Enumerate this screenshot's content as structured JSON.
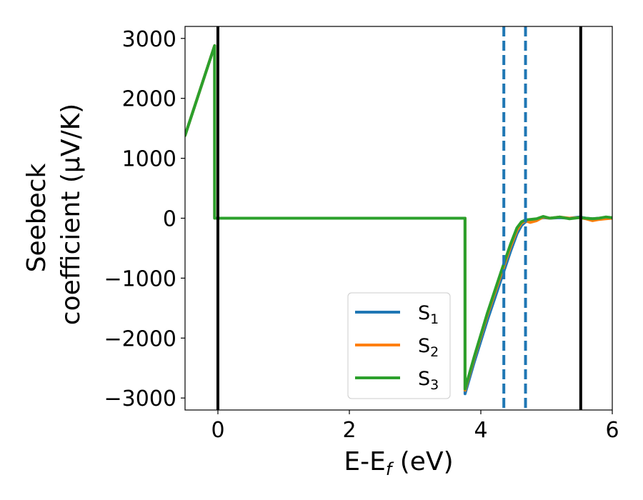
{
  "chart_data": {
    "type": "line",
    "xlabel": {
      "main": "E-E",
      "sub": "f",
      "tail": " (eV)"
    },
    "ylabel": {
      "line1": "Seebeck",
      "line2": "coefficient  (μV/K)"
    },
    "xlim": [
      -0.5,
      6.0
    ],
    "ylim": [
      -3200,
      3200
    ],
    "xticks": [
      0,
      2,
      4,
      6
    ],
    "yticks": [
      -3000,
      -2000,
      -1000,
      0,
      1000,
      2000,
      3000
    ],
    "ytick_labels": [
      "−3000",
      "−2000",
      "−1000",
      "0",
      "1000",
      "2000",
      "3000"
    ],
    "grid": false,
    "legend": {
      "placement": "lower-center-right"
    },
    "series": [
      {
        "name": "S",
        "sub": "1",
        "color": "#1f77b4",
        "x": [
          -0.5,
          -0.05,
          -0.05,
          3.76,
          3.76,
          3.9,
          4.1,
          4.3,
          4.45,
          4.55,
          4.62,
          4.68,
          4.75,
          4.85,
          4.95,
          5.05,
          5.2,
          5.35,
          5.5,
          5.6,
          5.7,
          5.8,
          5.9,
          6.0
        ],
        "y": [
          1380,
          2880,
          0,
          0,
          -2930,
          -2400,
          -1700,
          -1050,
          -560,
          -260,
          -120,
          -60,
          -40,
          -20,
          10,
          0,
          10,
          0,
          20,
          0,
          -10,
          0,
          10,
          0
        ]
      },
      {
        "name": "S",
        "sub": "2",
        "color": "#ff7f0e",
        "x": [
          -0.5,
          -0.05,
          -0.05,
          3.76,
          3.76,
          3.9,
          4.1,
          4.3,
          4.45,
          4.55,
          4.62,
          4.68,
          4.75,
          4.85,
          4.95,
          5.05,
          5.2,
          5.35,
          5.5,
          5.6,
          5.7,
          5.8,
          5.9,
          6.0
        ],
        "y": [
          1380,
          2880,
          0,
          0,
          -2870,
          -2330,
          -1610,
          -960,
          -480,
          -200,
          -80,
          -40,
          -70,
          -40,
          20,
          0,
          20,
          0,
          10,
          -10,
          -40,
          -20,
          -10,
          0
        ]
      },
      {
        "name": "S",
        "sub": "3",
        "color": "#2ca02c",
        "x": [
          -0.5,
          -0.05,
          -0.05,
          3.76,
          3.76,
          3.9,
          4.1,
          4.3,
          4.45,
          4.55,
          4.62,
          4.68,
          4.75,
          4.85,
          4.95,
          5.05,
          5.2,
          5.35,
          5.5,
          5.6,
          5.7,
          5.8,
          5.9,
          6.0
        ],
        "y": [
          1380,
          2880,
          0,
          0,
          -2850,
          -2310,
          -1580,
          -920,
          -440,
          -160,
          -60,
          -30,
          -20,
          -10,
          30,
          0,
          20,
          -10,
          10,
          0,
          -10,
          0,
          20,
          10
        ]
      }
    ],
    "vlines": [
      {
        "x": 0.0,
        "color": "#000000",
        "style": "solid"
      },
      {
        "x": 5.52,
        "color": "#000000",
        "style": "solid"
      },
      {
        "x": 4.35,
        "color": "#1f77b4",
        "style": "dashed"
      },
      {
        "x": 4.68,
        "color": "#1f77b4",
        "style": "dashed"
      }
    ]
  }
}
